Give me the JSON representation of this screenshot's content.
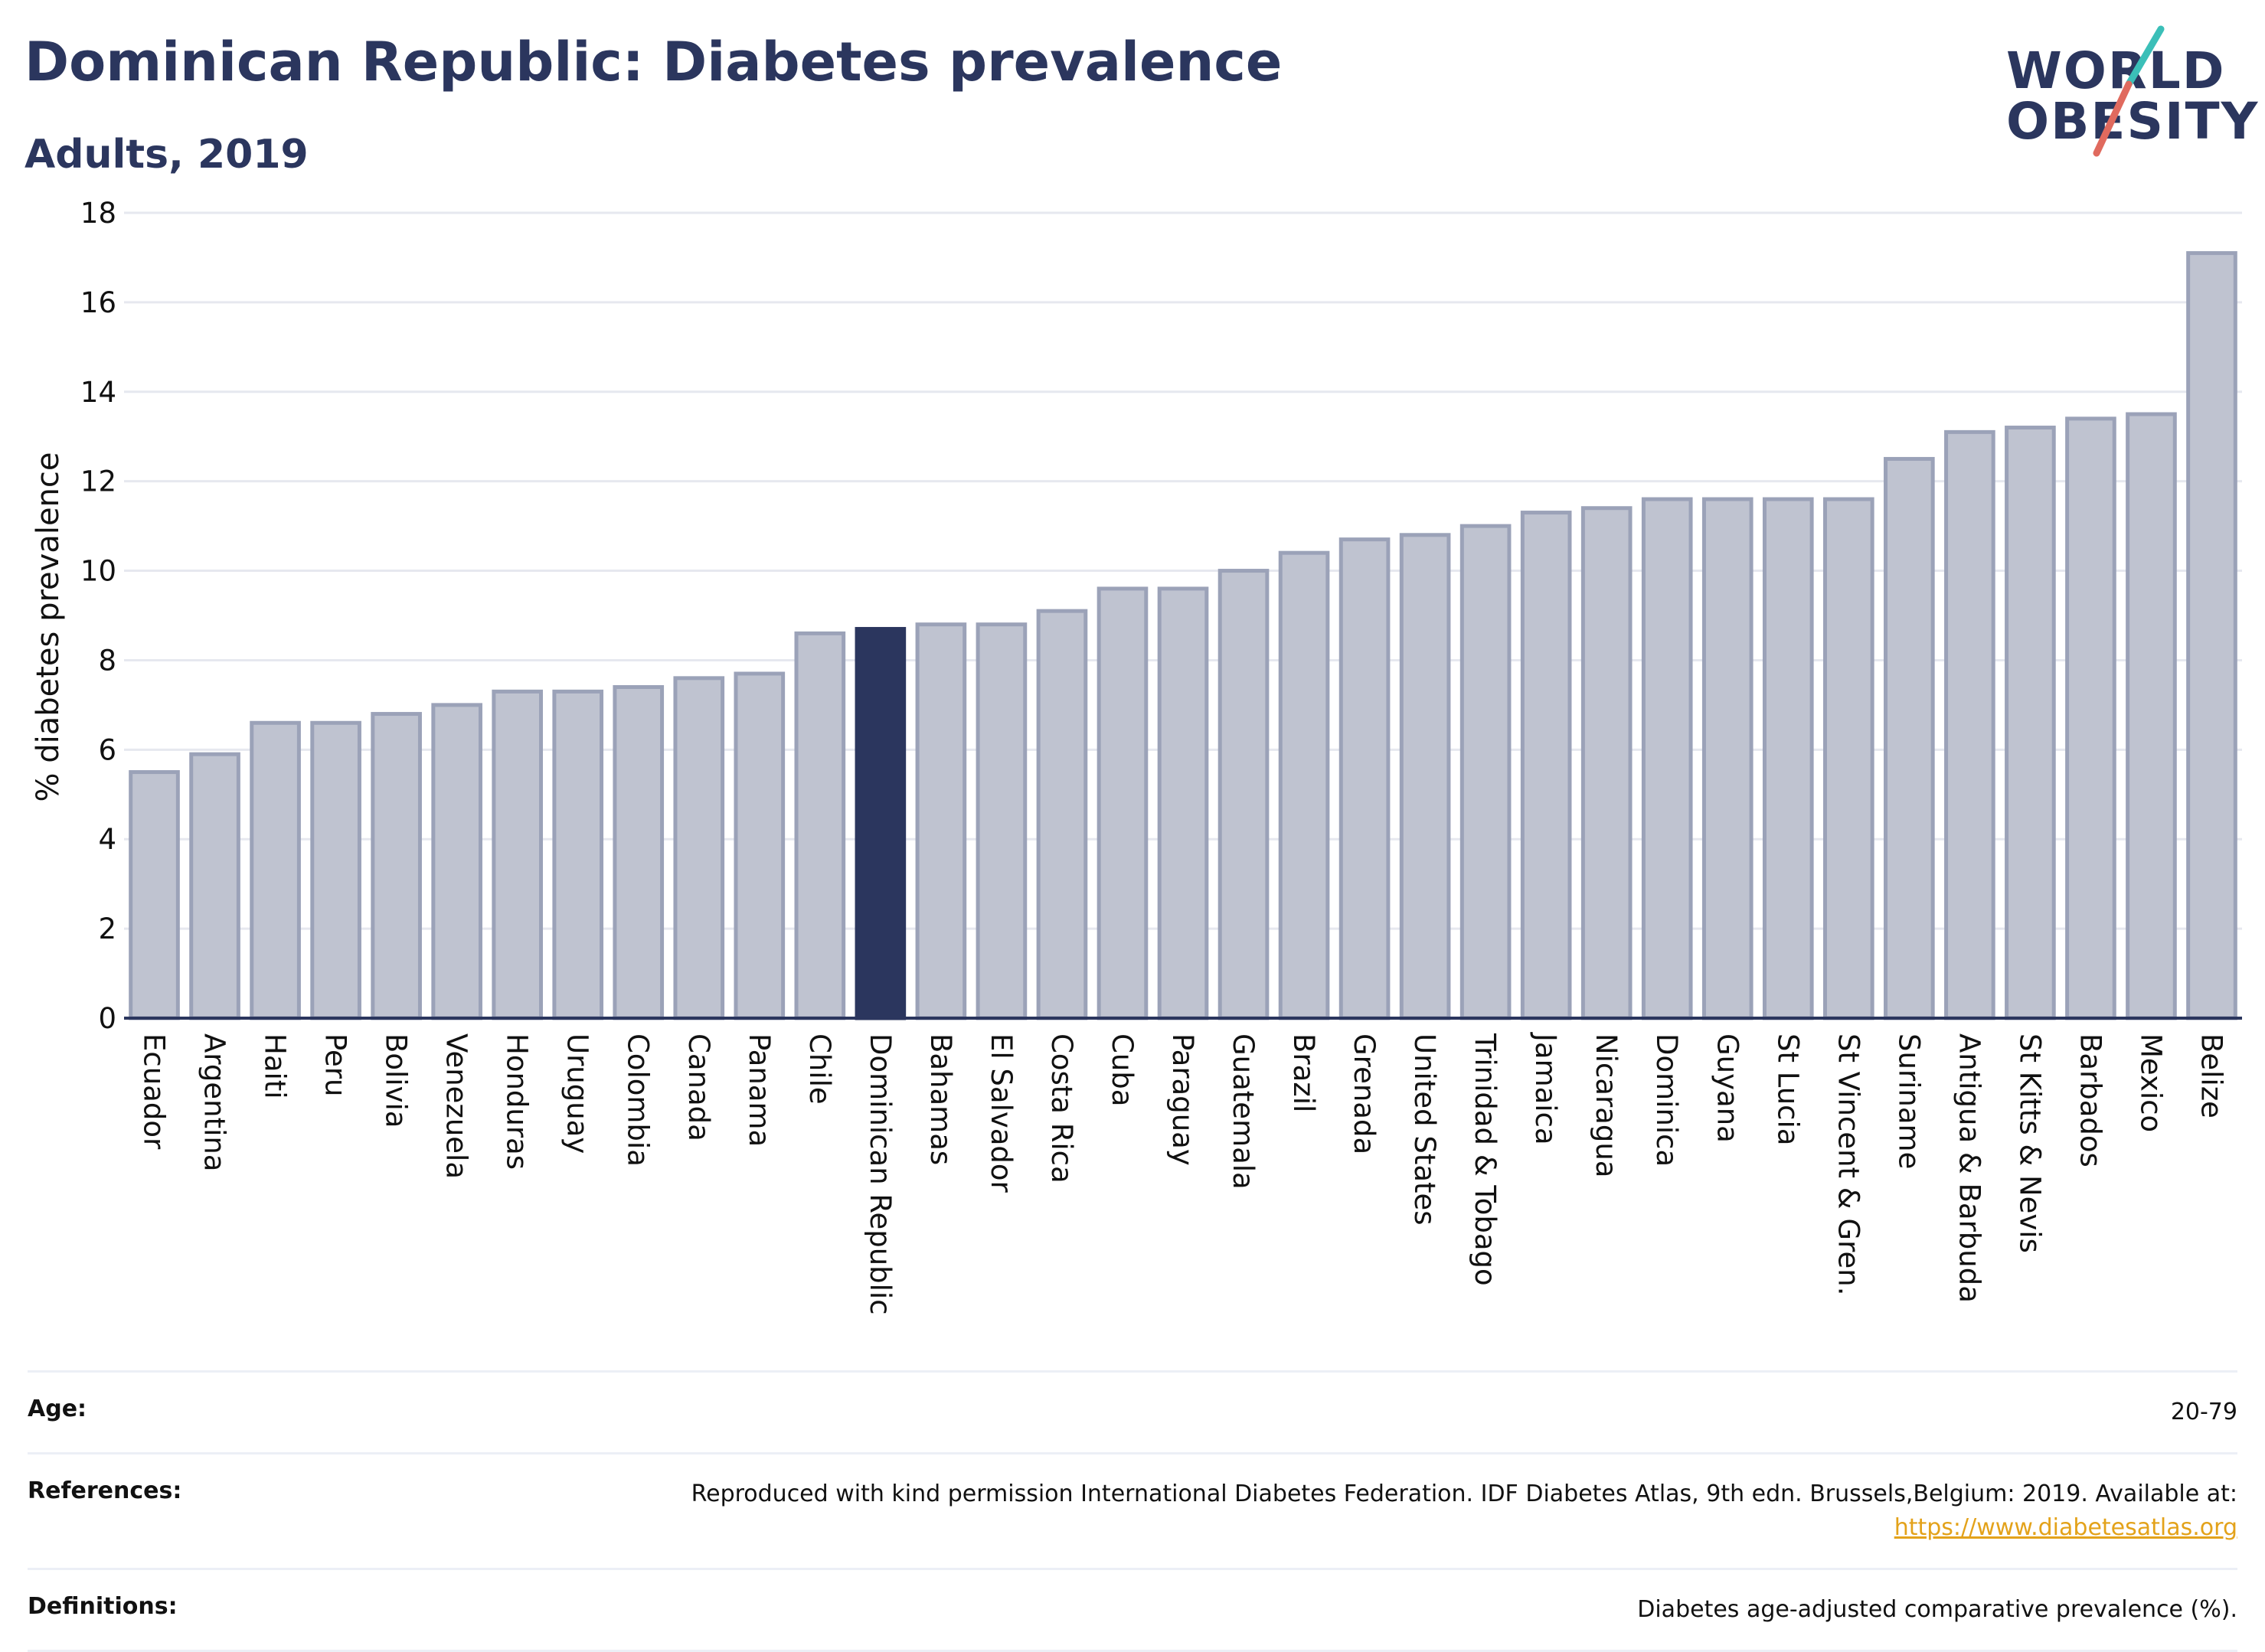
{
  "header": {
    "title": "Dominican Republic: Diabetes prevalence",
    "subtitle": "Adults, 2019"
  },
  "logo": {
    "line1": "WORLD",
    "line2": "OBESITY",
    "colors": {
      "text": "#2b365e",
      "teal_stroke": "#3bbfb8",
      "coral_stroke": "#e06a5e"
    }
  },
  "chart_data": {
    "type": "bar",
    "ylabel": "% diabetes prevalence",
    "ylim": [
      0,
      18
    ],
    "yticks": [
      0,
      2,
      4,
      6,
      8,
      10,
      12,
      14,
      16,
      18
    ],
    "grid": true,
    "highlight": "Dominican Republic",
    "colors": {
      "bar": "#bfc3d0",
      "bar_border": "#9ba2b8",
      "highlight": "#2b365e",
      "grid": "#e6e8ef",
      "axis": "#2b365e"
    },
    "categories": [
      "Ecuador",
      "Argentina",
      "Haiti",
      "Peru",
      "Bolivia",
      "Venezuela",
      "Honduras",
      "Uruguay",
      "Colombia",
      "Canada",
      "Panama",
      "Chile",
      "Dominican Republic",
      "Bahamas",
      "El Salvador",
      "Costa Rica",
      "Cuba",
      "Paraguay",
      "Guatemala",
      "Brazil",
      "Grenada",
      "United States",
      "Trinidad & Tobago",
      "Jamaica",
      "Nicaragua",
      "Dominica",
      "Guyana",
      "St Lucia",
      "St Vincent & Gren.",
      "Suriname",
      "Antigua & Barbuda",
      "St Kitts & Nevis",
      "Barbados",
      "Mexico",
      "Belize"
    ],
    "values": [
      5.5,
      5.9,
      6.6,
      6.6,
      6.8,
      7.0,
      7.3,
      7.3,
      7.4,
      7.6,
      7.7,
      8.6,
      8.7,
      8.8,
      8.8,
      9.1,
      9.6,
      9.6,
      10.0,
      10.4,
      10.7,
      10.8,
      11.0,
      11.3,
      11.4,
      11.6,
      11.6,
      11.6,
      11.6,
      12.5,
      13.1,
      13.2,
      13.4,
      13.5,
      17.1
    ]
  },
  "info": {
    "age_label": "Age:",
    "age_value": "20-79",
    "references_label": "References:",
    "references_text": "Reproduced with kind permission International Diabetes Federation. IDF Diabetes Atlas, 9th edn. Brussels,Belgium: 2019. Available at:",
    "references_link": "https://www.diabetesatlas.org",
    "definitions_label": "Definitions:",
    "definitions_value": "Diabetes age-adjusted comparative prevalence (%)."
  }
}
